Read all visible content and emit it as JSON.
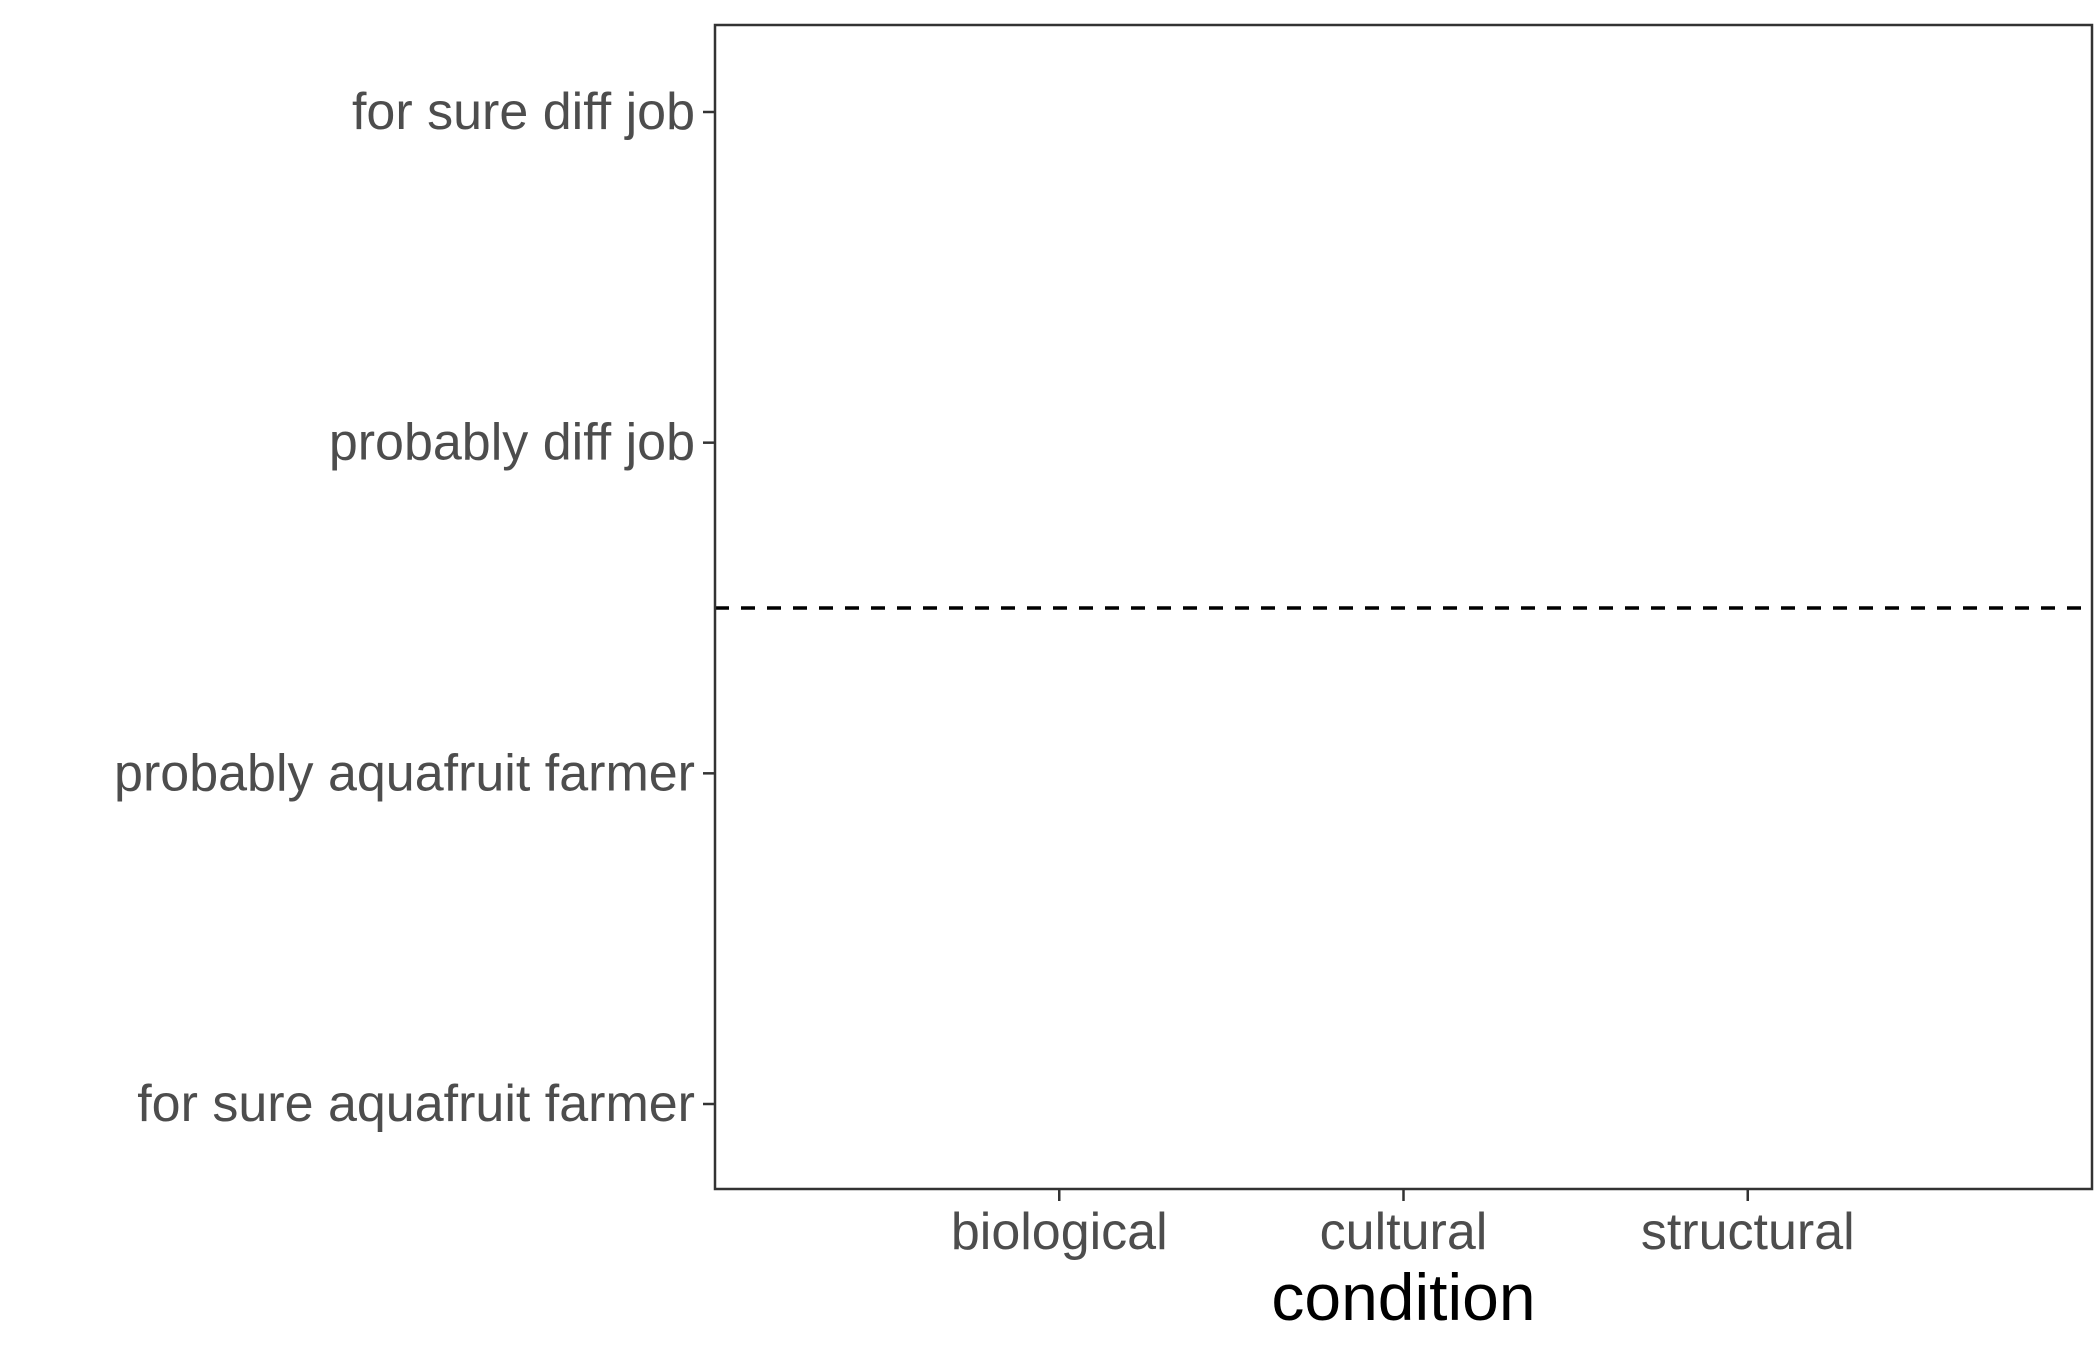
{
  "chart_data": {
    "type": "scatter",
    "title": "",
    "xlabel": "condition",
    "ylabel": "",
    "categories": [
      "biological",
      "cultural",
      "structural"
    ],
    "y_categories": [
      "for sure aquafruit farmer",
      "probably aquafruit farmer",
      "probably diff job",
      "for sure diff job"
    ],
    "series": [],
    "reference_lines": [
      {
        "orientation": "horizontal",
        "y": 2.5,
        "style": "dashed",
        "color": "#000000"
      }
    ],
    "grid": false,
    "legend": "none",
    "colors": {
      "panel_border": "#333333",
      "tick_text": "#4d4d4d",
      "axis_title": "#000000"
    }
  }
}
